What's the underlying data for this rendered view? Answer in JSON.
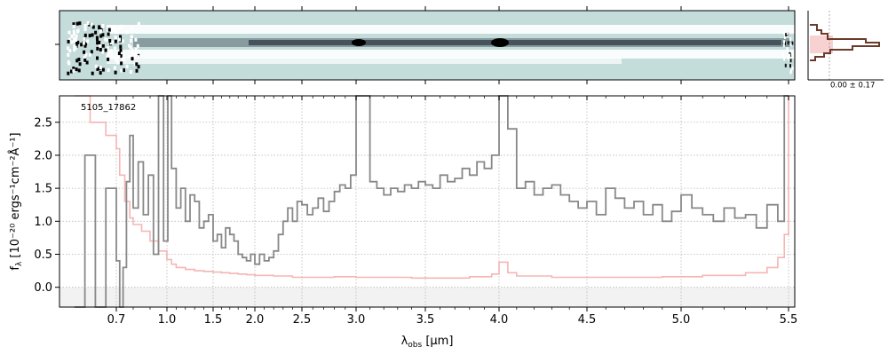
{
  "chart_data": {
    "type": "line",
    "object_id": "5105_17862",
    "xlabel": "λ",
    "xlabel_sub": "obs",
    "xlabel_unit": " [μm]",
    "ylabel": "f",
    "ylabel_sub": "λ",
    "ylabel_unit": " [10⁻²⁰ ergs⁻¹cm⁻²Å⁻¹]",
    "x_axis_scale": "nonlinear (spectral resolution)",
    "xlim": [
      0.6,
      5.5
    ],
    "ylim": [
      -0.3,
      2.9
    ],
    "grid": true,
    "x_ticks": [
      {
        "value": 0.7,
        "label": "0.7"
      },
      {
        "value": 1.0,
        "label": "1.0"
      },
      {
        "value": 1.5,
        "label": "1.5"
      },
      {
        "value": 2.0,
        "label": "2.0"
      },
      {
        "value": 2.5,
        "label": "2.5"
      },
      {
        "value": 3.0,
        "label": "3.0"
      },
      {
        "value": 3.5,
        "label": "3.5"
      },
      {
        "value": 4.0,
        "label": "4.0"
      },
      {
        "value": 4.5,
        "label": "4.5"
      },
      {
        "value": 5.0,
        "label": "5.0"
      },
      {
        "value": 5.5,
        "label": "5.5"
      }
    ],
    "y_ticks": [
      {
        "value": 0.0,
        "label": "0.0"
      },
      {
        "value": 0.5,
        "label": "0.5"
      },
      {
        "value": 1.0,
        "label": "1.0"
      },
      {
        "value": 1.5,
        "label": "1.5"
      },
      {
        "value": 2.0,
        "label": "2.0"
      },
      {
        "value": 2.5,
        "label": "2.5"
      }
    ],
    "series": [
      {
        "color": "#888888",
        "x": [
          0.62,
          0.64,
          0.66,
          0.68,
          0.7,
          0.72,
          0.74,
          0.76,
          0.78,
          0.8,
          0.83,
          0.86,
          0.89,
          0.92,
          0.95,
          0.98,
          1.01,
          1.05,
          1.1,
          1.15,
          1.2,
          1.25,
          1.3,
          1.35,
          1.4,
          1.45,
          1.5,
          1.55,
          1.6,
          1.65,
          1.7,
          1.75,
          1.8,
          1.85,
          1.9,
          1.95,
          2.0,
          2.05,
          2.1,
          2.15,
          2.2,
          2.25,
          2.3,
          2.35,
          2.4,
          2.45,
          2.5,
          2.55,
          2.6,
          2.65,
          2.7,
          2.75,
          2.8,
          2.85,
          2.9,
          2.95,
          3.0,
          3.05,
          3.1,
          3.15,
          3.2,
          3.25,
          3.3,
          3.35,
          3.4,
          3.45,
          3.5,
          3.55,
          3.6,
          3.65,
          3.7,
          3.75,
          3.8,
          3.85,
          3.9,
          3.95,
          4.0,
          4.05,
          4.1,
          4.15,
          4.2,
          4.25,
          4.3,
          4.35,
          4.4,
          4.45,
          4.5,
          4.55,
          4.6,
          4.65,
          4.7,
          4.75,
          4.8,
          4.85,
          4.9,
          4.95,
          5.0,
          5.05,
          5.1,
          5.15,
          5.2,
          5.25,
          5.3,
          5.35,
          5.4,
          5.45,
          5.48,
          5.5
        ],
        "y": [
          -0.3,
          2.0,
          -0.3,
          1.5,
          0.4,
          -0.3,
          0.3,
          1.6,
          2.3,
          1.2,
          1.9,
          1.1,
          1.7,
          0.5,
          2.9,
          0.7,
          2.9,
          1.8,
          1.2,
          1.5,
          1.0,
          1.4,
          1.3,
          0.9,
          1.0,
          1.1,
          0.7,
          0.8,
          0.6,
          0.9,
          0.8,
          0.7,
          0.5,
          0.45,
          0.4,
          0.5,
          0.35,
          0.5,
          0.4,
          0.45,
          0.55,
          0.8,
          1.0,
          1.2,
          1.0,
          1.3,
          1.25,
          1.1,
          1.2,
          1.35,
          1.15,
          1.3,
          1.45,
          1.55,
          1.5,
          1.7,
          2.9,
          2.9,
          1.6,
          1.5,
          1.4,
          1.5,
          1.45,
          1.55,
          1.5,
          1.6,
          1.55,
          1.5,
          1.7,
          1.6,
          1.65,
          1.8,
          1.7,
          1.9,
          1.8,
          2.0,
          2.9,
          2.4,
          1.5,
          1.6,
          1.4,
          1.5,
          1.55,
          1.4,
          1.3,
          1.2,
          1.3,
          1.1,
          1.5,
          1.35,
          1.2,
          1.3,
          1.1,
          1.25,
          1.0,
          1.15,
          1.4,
          1.2,
          1.1,
          1.0,
          1.2,
          1.05,
          1.1,
          0.9,
          1.25,
          1.0,
          2.9,
          2.9
        ]
      },
      {
        "color": "#f4a8a8",
        "x": [
          0.62,
          0.65,
          0.68,
          0.7,
          0.72,
          0.75,
          0.78,
          0.8,
          0.85,
          0.9,
          0.95,
          1.0,
          1.05,
          1.1,
          1.2,
          1.3,
          1.4,
          1.5,
          1.6,
          1.7,
          1.8,
          1.9,
          2.0,
          2.2,
          2.4,
          2.6,
          2.8,
          3.0,
          3.2,
          3.4,
          3.6,
          3.8,
          3.95,
          4.0,
          4.05,
          4.1,
          4.3,
          4.5,
          4.7,
          4.9,
          5.1,
          5.3,
          5.4,
          5.45,
          5.48,
          5.5
        ],
        "y": [
          2.9,
          2.5,
          2.3,
          2.1,
          1.7,
          1.3,
          1.05,
          0.95,
          0.85,
          0.7,
          0.55,
          0.42,
          0.35,
          0.3,
          0.27,
          0.25,
          0.24,
          0.23,
          0.22,
          0.21,
          0.2,
          0.19,
          0.18,
          0.17,
          0.15,
          0.15,
          0.16,
          0.15,
          0.15,
          0.14,
          0.14,
          0.16,
          0.2,
          0.38,
          0.22,
          0.17,
          0.15,
          0.15,
          0.15,
          0.16,
          0.18,
          0.22,
          0.3,
          0.45,
          0.8,
          2.9
        ]
      }
    ],
    "inset_label": "0.00 ± 0.17"
  },
  "colors": {
    "flux": "#888888",
    "error": "#f4a8a8",
    "profile": "#6b3a2a",
    "twod_background": "#c4dcda",
    "twod_trace": "#1a2330"
  }
}
